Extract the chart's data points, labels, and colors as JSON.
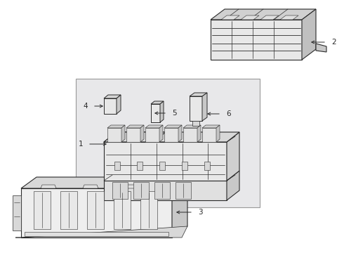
{
  "bg_color": "#ffffff",
  "line_color": "#2a2a2a",
  "gray_bg": "#e8e8ea",
  "gray_light": "#f0f0f0",
  "gray_med": "#d8d8d8",
  "gray_dark": "#b8b8b8",
  "label_color": "#000000",
  "fig_width": 4.9,
  "fig_height": 3.6,
  "dpi": 100,
  "label_fs": 7.5
}
